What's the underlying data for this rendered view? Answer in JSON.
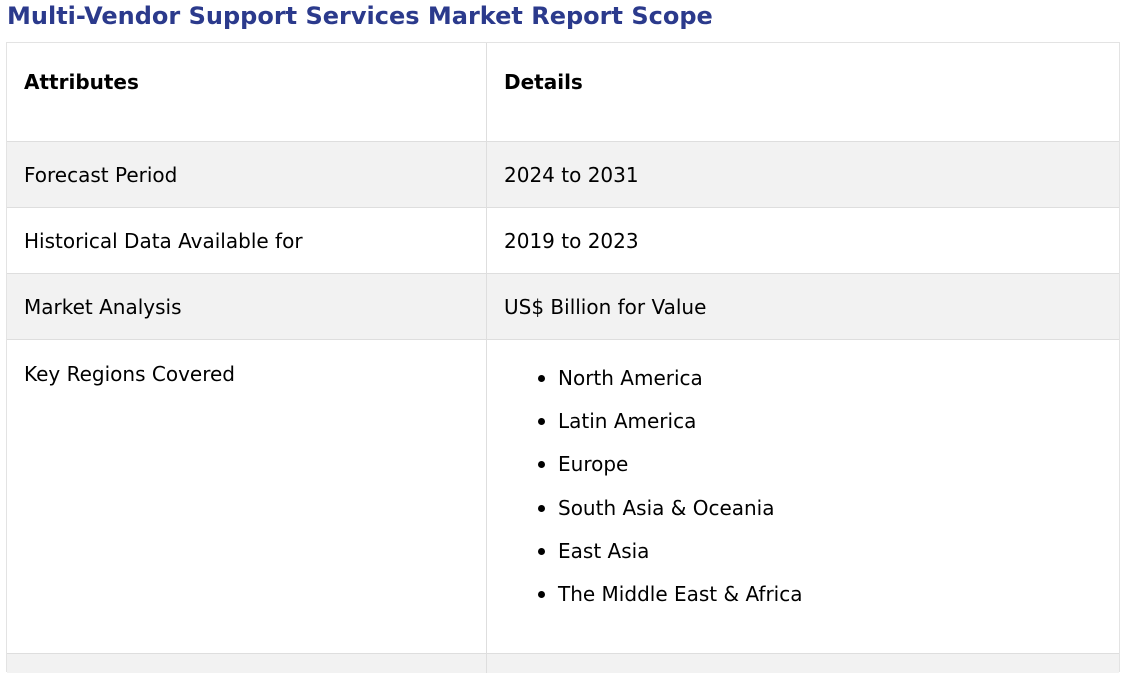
{
  "title": "Multi-Vendor Support Services Market Report Scope",
  "table": {
    "headers": {
      "attributes": "Attributes",
      "details": "Details"
    },
    "rows": [
      {
        "attribute": "Forecast Period",
        "detail": "2024 to 2031"
      },
      {
        "attribute": "Historical Data Available for",
        "detail": "2019 to 2023"
      },
      {
        "attribute": "Market Analysis",
        "detail": "US$ Billion for Value"
      },
      {
        "attribute": "Key Regions Covered",
        "regions": [
          "North America",
          "Latin America",
          "Europe",
          "South Asia & Oceania",
          "East Asia",
          "The Middle East & Africa"
        ]
      }
    ]
  },
  "colors": {
    "title": "#2b3a8c",
    "shaded_row": "#f2f2f2",
    "border": "#dedede"
  }
}
